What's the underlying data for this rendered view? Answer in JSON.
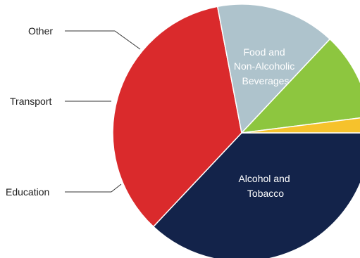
{
  "chart_data": {
    "type": "pie",
    "slices": [
      {
        "label": "Food and Non-Alcoholic Beverages",
        "value": 37,
        "color": "#13234a",
        "lines": [
          "Food and",
          "Non-Alcoholic",
          "Beverages"
        ]
      },
      {
        "label": "Alcohol and Tobacco",
        "value": 35,
        "color": "#da2a2c",
        "lines": [
          "Alcohol and",
          "Tobacco"
        ]
      },
      {
        "label": "Education",
        "value": 15,
        "color": "#aec3cc"
      },
      {
        "label": "Transport",
        "value": 11,
        "color": "#8dc63f"
      },
      {
        "label": "Other",
        "value": 2,
        "color": "#f6c22c"
      }
    ]
  }
}
